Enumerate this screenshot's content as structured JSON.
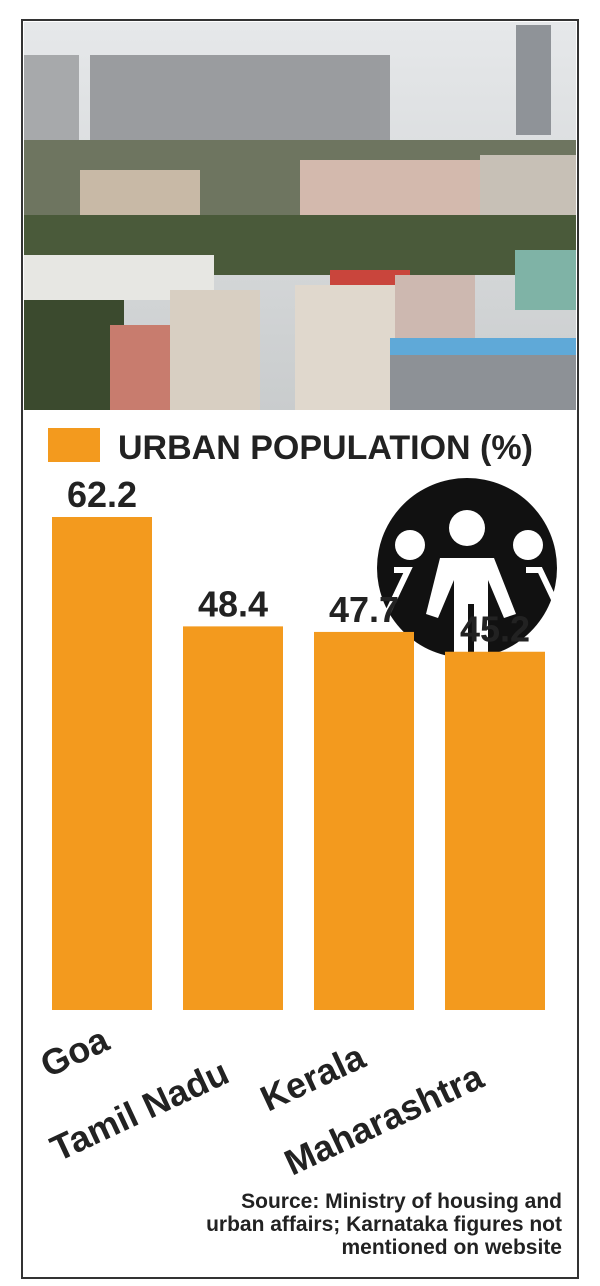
{
  "chart_data": {
    "type": "bar",
    "series": [
      {
        "name": "URBAN POPULATION (%)",
        "color": "#f39a1e",
        "values": [
          62.2,
          48.4,
          47.7,
          45.2
        ]
      }
    ],
    "categories": [
      "Goa",
      "Tamil Nadu",
      "Kerala",
      "Maharashtra"
    ],
    "source": [
      "Source: Ministry of housing and",
      "urban affairs; Karnataka figures not",
      "mentioned on website"
    ]
  }
}
